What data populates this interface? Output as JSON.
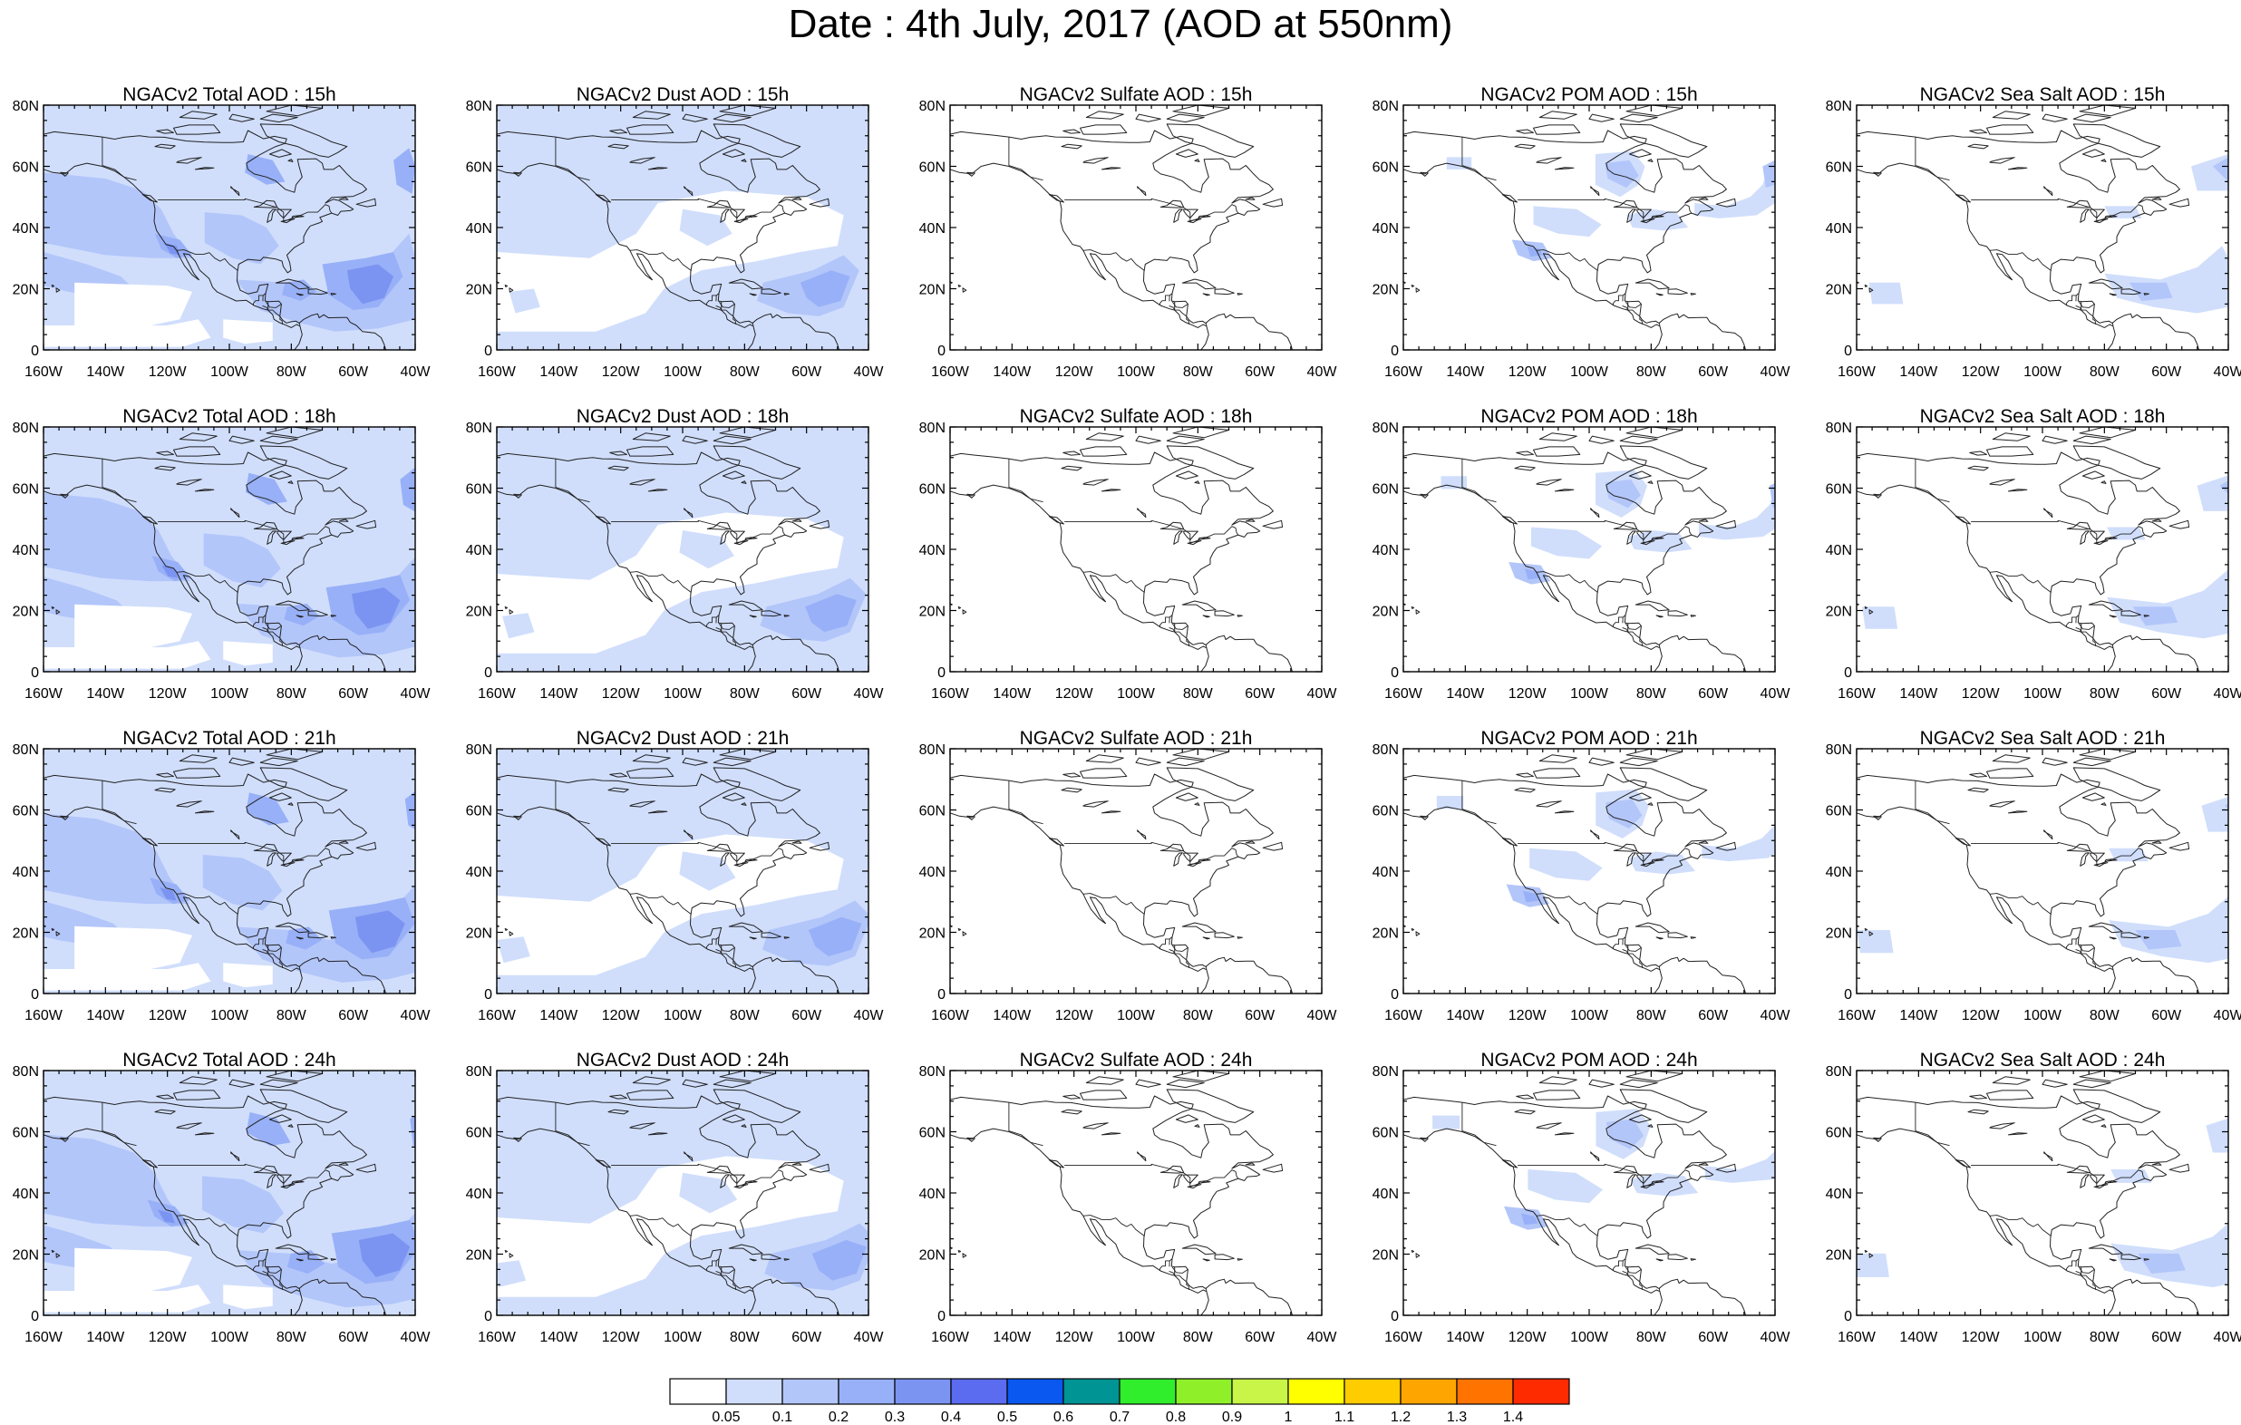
{
  "title": "Date : 4th July, 2017 (AOD at 550nm)",
  "lon_ticks": [
    "160W",
    "140W",
    "120W",
    "100W",
    "80W",
    "60W",
    "40W"
  ],
  "lat_ticks": [
    "80N",
    "60N",
    "40N",
    "20N",
    "0"
  ],
  "rows": [
    {
      "hour": "15h",
      "panels": [
        {
          "species": "total",
          "title": "NGACv2 Total AOD : 15h"
        },
        {
          "species": "dust",
          "title": "NGACv2 Dust AOD : 15h"
        },
        {
          "species": "sulfate",
          "title": "NGACv2 Sulfate AOD : 15h"
        },
        {
          "species": "pom",
          "title": "NGACv2 POM AOD : 15h"
        },
        {
          "species": "seasalt",
          "title": "NGACv2 Sea Salt AOD : 15h"
        }
      ]
    },
    {
      "hour": "18h",
      "panels": [
        {
          "species": "total",
          "title": "NGACv2 Total AOD : 18h"
        },
        {
          "species": "dust",
          "title": "NGACv2 Dust AOD : 18h"
        },
        {
          "species": "sulfate",
          "title": "NGACv2 Sulfate AOD : 18h"
        },
        {
          "species": "pom",
          "title": "NGACv2 POM AOD : 18h"
        },
        {
          "species": "seasalt",
          "title": "NGACv2 Sea Salt AOD : 18h"
        }
      ]
    },
    {
      "hour": "21h",
      "panels": [
        {
          "species": "total",
          "title": "NGACv2 Total AOD : 21h"
        },
        {
          "species": "dust",
          "title": "NGACv2 Dust AOD : 21h"
        },
        {
          "species": "sulfate",
          "title": "NGACv2 Sulfate AOD : 21h"
        },
        {
          "species": "pom",
          "title": "NGACv2 POM AOD : 21h"
        },
        {
          "species": "seasalt",
          "title": "NGACv2 Sea Salt AOD : 21h"
        }
      ]
    },
    {
      "hour": "24h",
      "panels": [
        {
          "species": "total",
          "title": "NGACv2 Total AOD : 24h"
        },
        {
          "species": "dust",
          "title": "NGACv2 Dust AOD : 24h"
        },
        {
          "species": "sulfate",
          "title": "NGACv2 Sulfate AOD : 24h"
        },
        {
          "species": "pom",
          "title": "NGACv2 POM AOD : 24h"
        },
        {
          "species": "seasalt",
          "title": "NGACv2 Sea Salt  AOD : 24h"
        }
      ]
    }
  ],
  "colorbar": {
    "labels": [
      "0.05",
      "0.1",
      "0.2",
      "0.3",
      "0.4",
      "0.5",
      "0.6",
      "0.7",
      "0.8",
      "0.9",
      "1",
      "1.1",
      "1.2",
      "1.3",
      "1.4"
    ],
    "colors": [
      "#ffffff",
      "#d0defc",
      "#b3c6fa",
      "#98b0f7",
      "#7c94f1",
      "#5b6cf0",
      "#0a58f0",
      "#009494",
      "#30ee2c",
      "#8ff02a",
      "#c8f548",
      "#ffff00",
      "#ffcc00",
      "#ffa500",
      "#ff7300",
      "#ff2b00"
    ]
  }
}
